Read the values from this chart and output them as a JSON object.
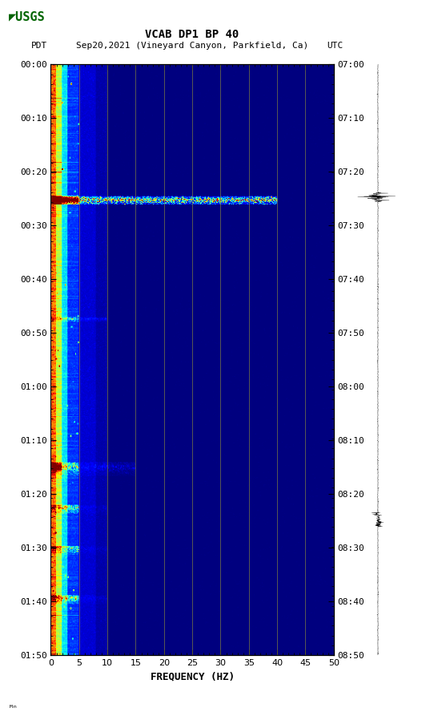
{
  "title_line1": "VCAB DP1 BP 40",
  "title_line2_left": "PDT",
  "title_line2_mid": "Sep20,2021 (Vineyard Canyon, Parkfield, Ca)",
  "title_line2_right": "UTC",
  "xlabel": "FREQUENCY (HZ)",
  "freq_min": 0,
  "freq_max": 50,
  "freq_ticks": [
    0,
    5,
    10,
    15,
    20,
    25,
    30,
    35,
    40,
    45,
    50
  ],
  "time_labels_left": [
    "00:00",
    "00:10",
    "00:20",
    "00:30",
    "00:40",
    "00:50",
    "01:00",
    "01:10",
    "01:20",
    "01:30",
    "01:40",
    "01:50"
  ],
  "time_labels_right": [
    "07:00",
    "07:10",
    "07:20",
    "07:30",
    "07:40",
    "07:50",
    "08:00",
    "08:10",
    "08:20",
    "08:30",
    "08:40",
    "08:50"
  ],
  "n_time": 720,
  "n_freq": 500,
  "background_color": "#ffffff",
  "colormap": "jet",
  "vline_color": "#808040",
  "vline_freq_positions": [
    5,
    10,
    15,
    20,
    25,
    30,
    35,
    40,
    45
  ],
  "eq1_row": 165,
  "eq2_row": 310,
  "eq3_row": 490,
  "eq4_row": 540,
  "eq5_row": 590,
  "eq6_row": 650,
  "usgs_color": "#006400",
  "seed": 1234
}
